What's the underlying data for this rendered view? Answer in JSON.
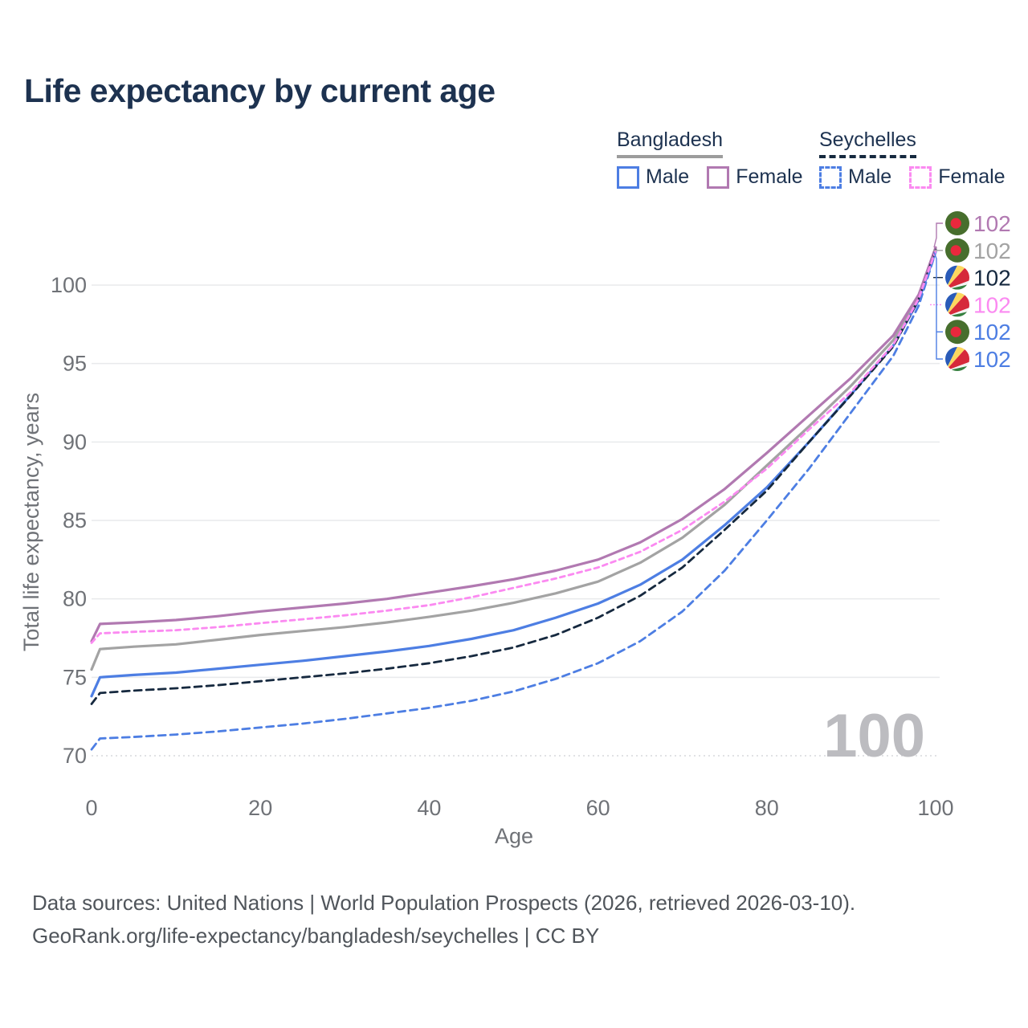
{
  "title": "Life expectancy by current age",
  "legend": {
    "groups": [
      {
        "label": "Bangladesh",
        "male": "Male",
        "female": "Female"
      },
      {
        "label": "Seychelles",
        "male": "Male",
        "female": "Female"
      }
    ]
  },
  "chart_data": {
    "type": "line",
    "title": "Life expectancy by current age",
    "xlabel": "Age",
    "ylabel": "Total life expectancy, years",
    "xlim": [
      0,
      100
    ],
    "ylim": [
      69.5,
      103.5
    ],
    "xticks": [
      0,
      20,
      40,
      60,
      80,
      100
    ],
    "yticks": [
      70,
      75,
      80,
      85,
      90,
      95,
      100
    ],
    "grid": "horizontal",
    "legend_position": "top-right",
    "x": [
      0,
      1,
      5,
      10,
      15,
      20,
      25,
      30,
      35,
      40,
      45,
      50,
      55,
      60,
      65,
      70,
      75,
      80,
      85,
      90,
      95,
      98,
      100
    ],
    "series": [
      {
        "name": "Bangladesh",
        "country": "bangladesh",
        "sex": "all",
        "color": "#a3a3a3",
        "dash": null,
        "width": 3.2,
        "values": [
          75.5,
          76.8,
          76.95,
          77.1,
          77.4,
          77.7,
          77.95,
          78.2,
          78.5,
          78.85,
          79.25,
          79.75,
          80.35,
          81.1,
          82.3,
          83.9,
          86.0,
          88.5,
          91.0,
          93.6,
          96.5,
          99.25,
          102.3
        ]
      },
      {
        "name": "Bangladesh Male",
        "country": "bangladesh",
        "sex": "male",
        "color": "#4d7ee3",
        "dash": null,
        "width": 3.2,
        "values": [
          73.8,
          75.0,
          75.15,
          75.3,
          75.55,
          75.8,
          76.05,
          76.35,
          76.65,
          77.0,
          77.45,
          78.0,
          78.8,
          79.7,
          80.9,
          82.5,
          84.7,
          87.1,
          90.0,
          93.05,
          96.15,
          99.05,
          102.15
        ]
      },
      {
        "name": "Bangladesh Female",
        "country": "bangladesh",
        "sex": "female",
        "color": "#b179b1",
        "dash": null,
        "width": 3.2,
        "values": [
          77.3,
          78.4,
          78.5,
          78.65,
          78.9,
          79.2,
          79.45,
          79.7,
          80.0,
          80.4,
          80.8,
          81.25,
          81.8,
          82.5,
          83.6,
          85.1,
          87.0,
          89.3,
          91.7,
          94.1,
          96.8,
          99.4,
          102.4
        ]
      },
      {
        "name": "Seychelles",
        "country": "seychelles",
        "sex": "all",
        "color": "#16293f",
        "dash": "9 6",
        "width": 2.8,
        "values": [
          73.3,
          74.0,
          74.15,
          74.3,
          74.5,
          74.75,
          75.0,
          75.25,
          75.55,
          75.9,
          76.35,
          76.9,
          77.7,
          78.8,
          80.2,
          82.0,
          84.4,
          86.9,
          90.0,
          93.0,
          96.1,
          99.1,
          102.25
        ]
      },
      {
        "name": "Seychelles Male",
        "country": "seychelles",
        "sex": "male",
        "color": "#4d7ee3",
        "dash": "9 6",
        "width": 2.8,
        "values": [
          70.4,
          71.1,
          71.2,
          71.35,
          71.55,
          71.8,
          72.05,
          72.35,
          72.7,
          73.05,
          73.5,
          74.1,
          74.9,
          75.9,
          77.3,
          79.2,
          81.8,
          85.0,
          88.3,
          91.9,
          95.5,
          98.7,
          102.1
        ]
      },
      {
        "name": "Seychelles Female",
        "country": "seychelles",
        "sex": "female",
        "color": "#fb8af1",
        "dash": "6 5",
        "width": 2.8,
        "values": [
          77.2,
          77.8,
          77.9,
          78.0,
          78.2,
          78.45,
          78.7,
          78.95,
          79.25,
          79.6,
          80.1,
          80.7,
          81.3,
          82.0,
          83.0,
          84.4,
          86.2,
          88.3,
          90.8,
          93.2,
          96.2,
          99.15,
          102.2
        ]
      }
    ],
    "end_labels": [
      {
        "text": "102",
        "flag": "bangladesh",
        "color": "#b179b1",
        "series": "Bangladesh Female"
      },
      {
        "text": "102",
        "flag": "bangladesh",
        "color": "#a3a3a3",
        "series": "Bangladesh"
      },
      {
        "text": "102",
        "flag": "seychelles",
        "color": "#16293f",
        "series": "Seychelles"
      },
      {
        "text": "102",
        "flag": "seychelles",
        "color": "#fb8af1",
        "series": "Seychelles Female"
      },
      {
        "text": "102",
        "flag": "bangladesh",
        "color": "#4d7ee3",
        "series": "Bangladesh Male"
      },
      {
        "text": "102",
        "flag": "seychelles",
        "color": "#4d7ee3",
        "series": "Seychelles Male"
      }
    ],
    "watermark": "100"
  },
  "footer": {
    "line1": "Data sources: United Nations | World Population Prospects (2026, retrieved 2026-03-10).",
    "line2": "GeoRank.org/life-expectancy/bangladesh/seychelles | CC BY"
  },
  "colors": {
    "title_text": "#1d3250",
    "tick_text": "#6f7277",
    "gridline": "#e9eaec",
    "gridline_dotted": "#d7d8dc",
    "watermark": "#bcbcc0",
    "footer_text": "#50555b"
  }
}
